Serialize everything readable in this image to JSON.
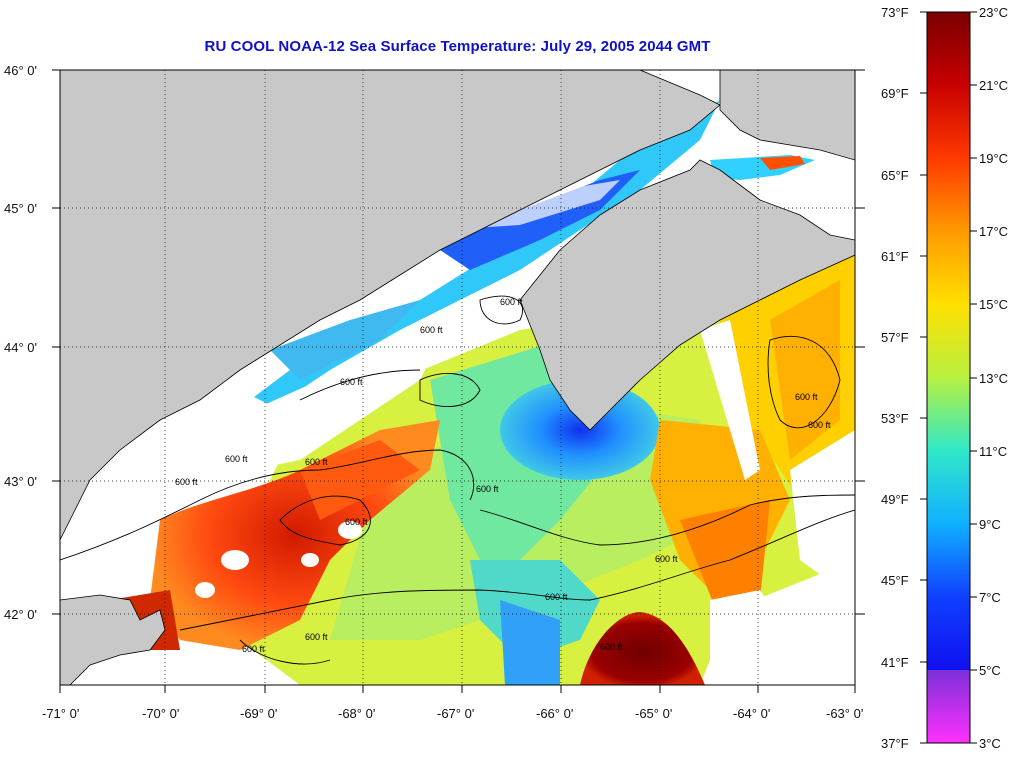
{
  "title": "RU COOL  NOAA-12  Sea Surface Temperature:  July 29, 2005 2044 GMT",
  "lat_labels": [
    "46° 0'",
    "45° 0'",
    "44° 0'",
    "43° 0'",
    "42° 0'"
  ],
  "lon_labels": [
    "-71° 0'",
    "-70° 0'",
    "-69° 0'",
    "-68° 0'",
    "-67° 0'",
    "-66° 0'",
    "-65° 0'",
    "-64° 0'",
    "-63° 0'"
  ],
  "colorbar": {
    "fahrenheit": [
      "73°F",
      "69°F",
      "65°F",
      "61°F",
      "57°F",
      "53°F",
      "49°F",
      "45°F",
      "41°F",
      "37°F"
    ],
    "celsius": [
      "23°C",
      "21°C",
      "19°C",
      "17°C",
      "15°C",
      "13°C",
      "11°C",
      "9°C",
      "7°C",
      "5°C",
      "3°C"
    ],
    "colors": [
      "#7a0000",
      "#c80000",
      "#ff3a00",
      "#ff8a00",
      "#ffd200",
      "#e8ff20",
      "#9cf06a",
      "#40e0c0",
      "#10c8ff",
      "#1070ff",
      "#1020ff",
      "#7030d0",
      "#ff30ff"
    ]
  },
  "contour_labels": [
    "600 ft",
    "600 ft",
    "600 ft",
    "600 ft",
    "600 ft",
    "600 ft",
    "600 ft",
    "600 ft",
    "600 ft",
    "600 ft",
    "600 ft",
    "600 ft",
    "600 ft",
    "600 ft",
    "600 ft"
  ],
  "map_colors": {
    "land": "#c8c8c8",
    "cloud": "#ffffff",
    "frame": "#000000"
  }
}
